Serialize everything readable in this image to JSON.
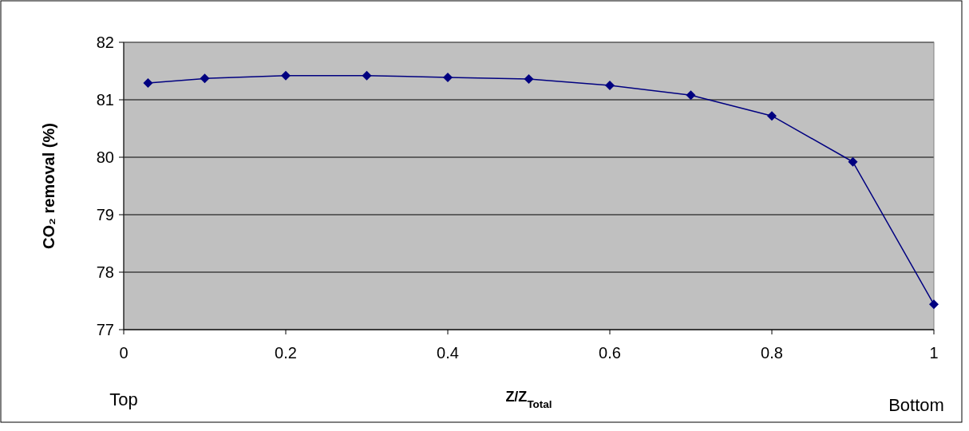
{
  "chart_data": {
    "type": "line",
    "xlabel": "Z/Z$_{Total}$",
    "ylabel": "CO₂ removal (%)",
    "annotations": [
      "Top",
      "Bottom"
    ],
    "x": [
      0.03,
      0.1,
      0.2,
      0.3,
      0.4,
      0.5,
      0.6,
      0.7,
      0.8,
      0.9,
      1.0
    ],
    "series": [
      {
        "color": "#000080",
        "values": [
          81.29,
          81.37,
          81.42,
          81.42,
          81.39,
          81.36,
          81.25,
          81.08,
          80.72,
          79.92,
          77.44
        ]
      }
    ],
    "xlim": [
      0,
      1
    ],
    "xticks": [
      0,
      0.2,
      0.4,
      0.6,
      0.8,
      1
    ],
    "ylim": [
      77,
      82
    ],
    "yticks": [
      77,
      78,
      79,
      80,
      81,
      82
    ],
    "grid": "y",
    "marker": "diamond",
    "line_style": "solid"
  }
}
